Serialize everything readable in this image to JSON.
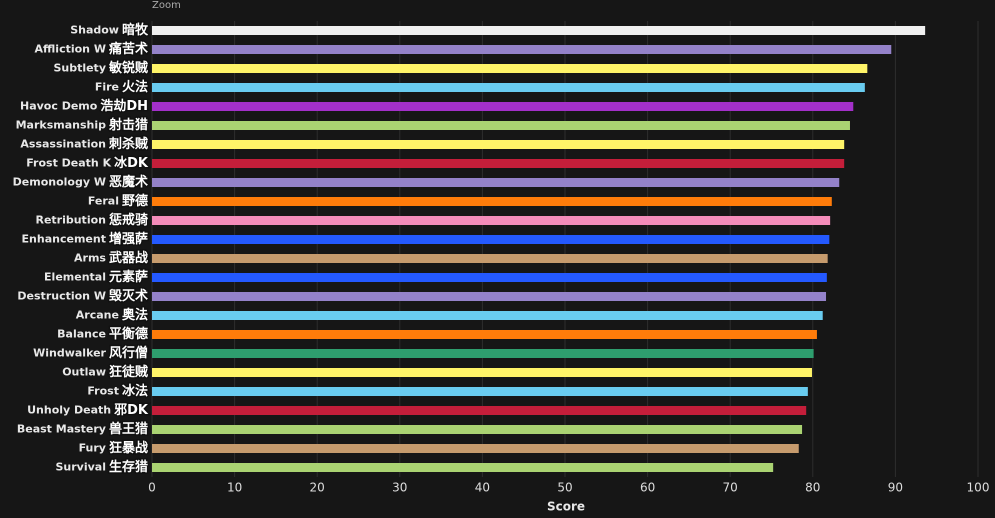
{
  "chart_data": {
    "type": "hbar",
    "zoom_label": "Zoom",
    "xlabel": "Score",
    "categories": [
      "Shadow",
      "Affliction W",
      "Subtlety",
      "Fire",
      "Havoc Demo",
      "Marksmanship",
      "Assassination",
      "Frost Death K",
      "Demonology W",
      "Feral",
      "Retribution",
      "Enhancement",
      "Arms",
      "Elemental",
      "Destruction W",
      "Arcane",
      "Balance",
      "Windwalker",
      "Outlaw",
      "Frost",
      "Unholy Death",
      "Beast Mastery",
      "Fury",
      "Survival"
    ],
    "labels": [
      "暗牧",
      "痛苦术",
      "敏锐贼",
      "火法",
      "浩劫DH",
      "射击猎",
      "刺杀贼",
      "冰DK",
      "恶魔术",
      "野德",
      "惩戒骑",
      "增强萨",
      "武器战",
      "元素萨",
      "毁灭术",
      "奥法",
      "平衡德",
      "风行僧",
      "狂徒贼",
      "冰法",
      "邪DK",
      "兽王猎",
      "狂暴战",
      "生存猎"
    ],
    "values": [
      93.6,
      89.5,
      86.6,
      86.3,
      84.9,
      84.5,
      83.8,
      83.8,
      83.2,
      82.3,
      82.1,
      82.0,
      81.8,
      81.7,
      81.6,
      81.2,
      80.5,
      80.1,
      79.9,
      79.4,
      79.2,
      78.7,
      78.3,
      75.2
    ],
    "colors": [
      "#f0f0f0",
      "#9482c9",
      "#fff468",
      "#69ccf0",
      "#a330c9",
      "#aad372",
      "#fff468",
      "#c41e3a",
      "#9482c9",
      "#ff7c0a",
      "#f48cba",
      "#2459ff",
      "#c69b6d",
      "#2459ff",
      "#9482c9",
      "#69ccf0",
      "#ff7c0a",
      "#2e9e6e",
      "#fff468",
      "#69ccf0",
      "#c41e3a",
      "#aad372",
      "#c69b6d",
      "#aad372"
    ],
    "xlim": [
      0,
      100
    ],
    "xticks": [
      0,
      10,
      20,
      30,
      40,
      50,
      60,
      70,
      80,
      90,
      100
    ],
    "grid": true
  }
}
